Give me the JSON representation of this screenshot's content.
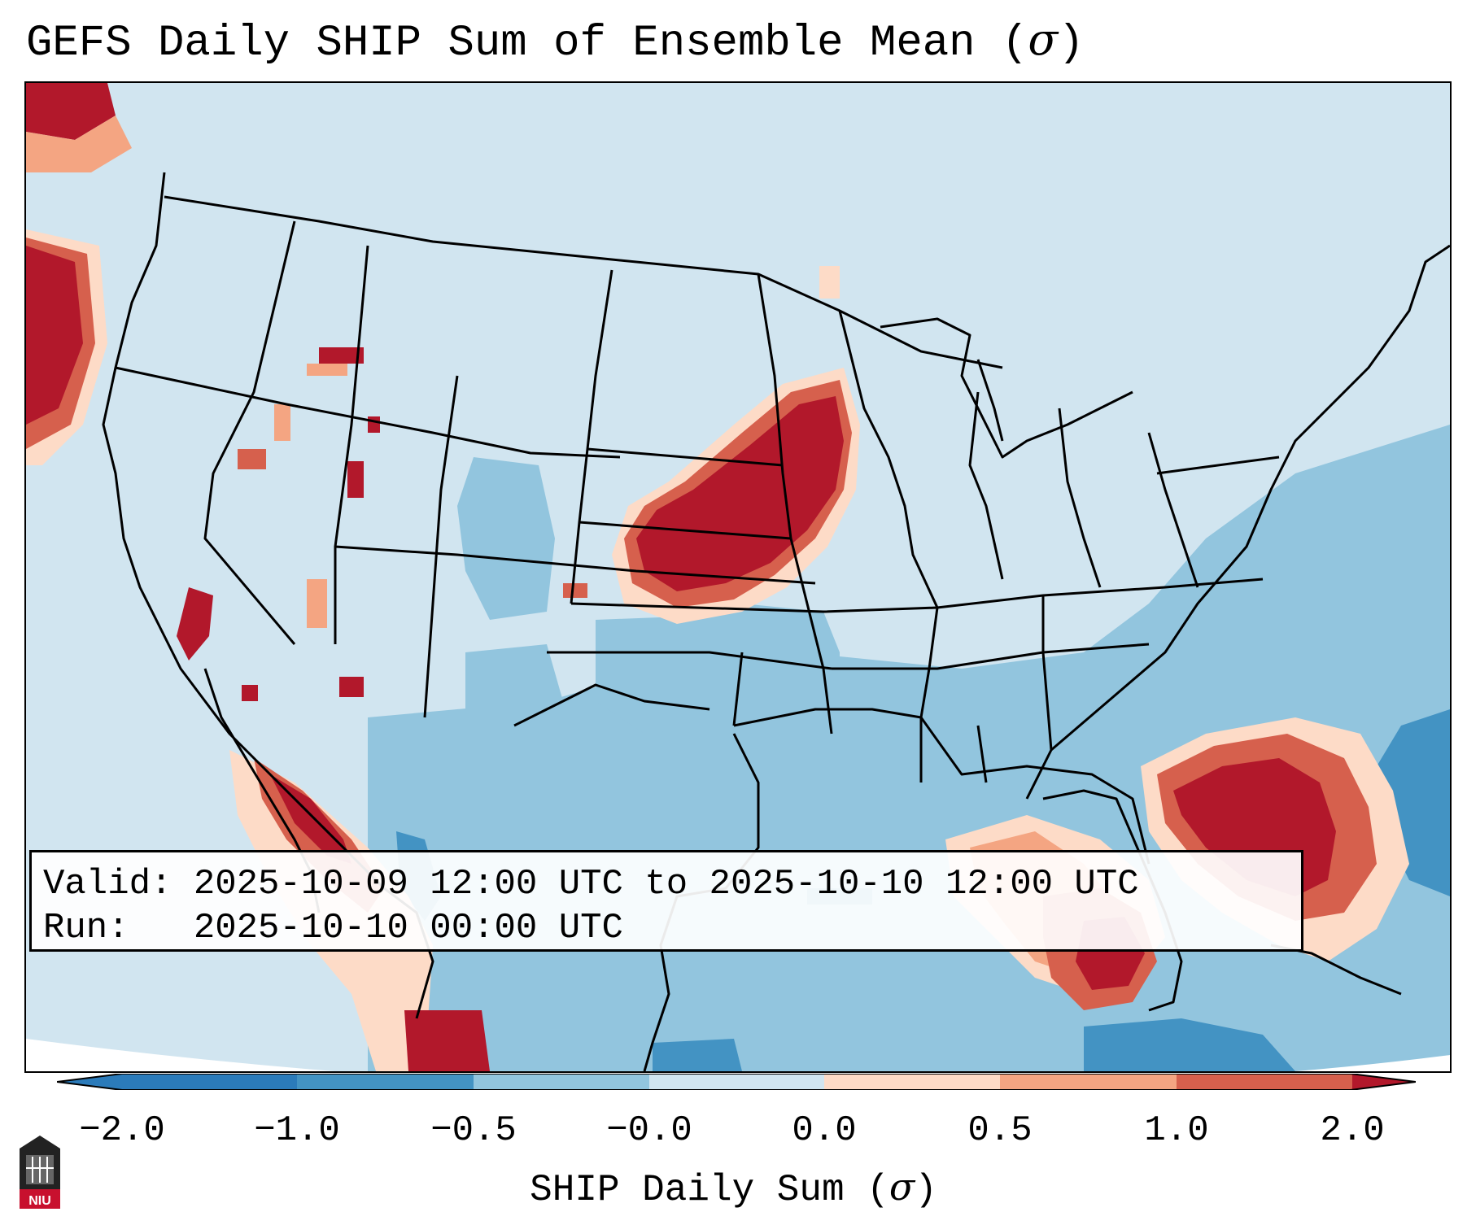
{
  "title": {
    "text": "GEFS Daily SHIP Sum of Ensemble Mean (",
    "sigma": "σ",
    "close": ")"
  },
  "info": {
    "valid_label": "Valid:",
    "valid_text": "2025-10-09 12:00 UTC to 2025-10-10 12:00 UTC",
    "run_label": "Run:",
    "run_text": "2025-10-10 00:00 UTC"
  },
  "colorbar": {
    "ticks": [
      "−2.0",
      "−1.0",
      "−0.5",
      "−0.0",
      "0.0",
      "0.5",
      "1.0",
      "2.0"
    ],
    "colors": [
      "#2b7bba",
      "#4393c3",
      "#92c5de",
      "#d1e5f0",
      "#fddbc7",
      "#f4a582",
      "#d6604d",
      "#b2182b"
    ],
    "label": "SHIP Daily Sum (",
    "label_sigma": "σ",
    "label_close": ")"
  },
  "map": {
    "background_color": "#d1e5f0",
    "ocean_color": "#92c5de",
    "deep_color": "#4393c3",
    "strong_positive_color": "#b2182b",
    "positive_color": "#d6604d",
    "weak_positive_color": "#f4a582",
    "slight_positive_color": "#fddbc7"
  },
  "logo": {
    "text": "NIU"
  }
}
